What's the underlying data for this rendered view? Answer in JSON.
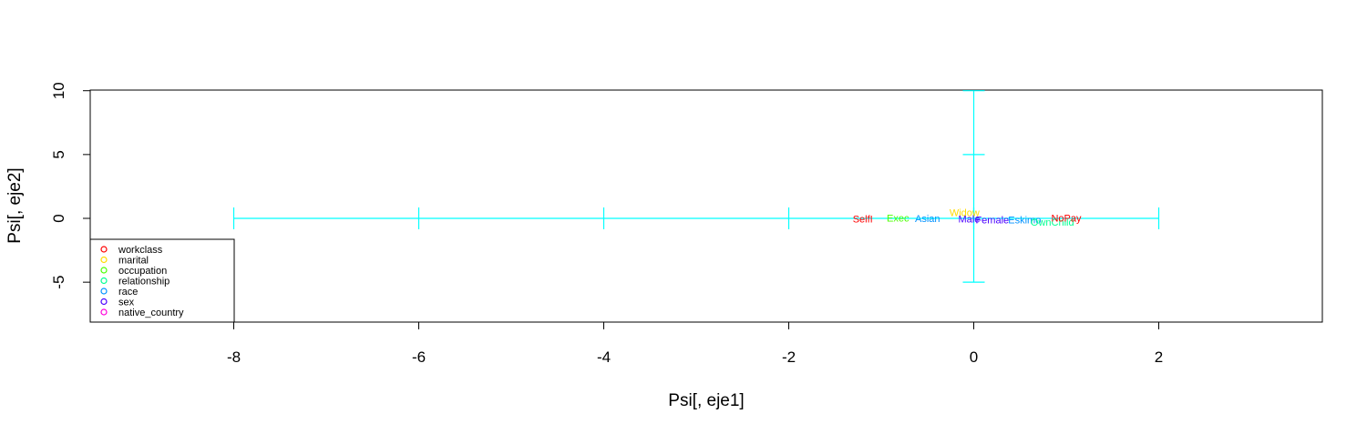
{
  "chart_data": {
    "type": "scatter",
    "xlabel": "Psi[, eje1]",
    "ylabel": "Psi[, eje2]",
    "xlim": [
      -9.5,
      3.7
    ],
    "ylim": [
      -8.2,
      10.3
    ],
    "x_ticks": [
      "-8",
      "-6",
      "-4",
      "-2",
      "0",
      "2"
    ],
    "y_ticks": [
      "-5",
      "0",
      "5",
      "10"
    ],
    "reference_lines": {
      "color": "#00FFFF",
      "horizontal": {
        "y": 0,
        "x_from": -8,
        "x_to": 2,
        "tick_marks_at": [
          -8,
          -6,
          -4,
          -2,
          0,
          2
        ]
      },
      "vertical": {
        "x": 0,
        "y_from": -5,
        "y_to": 10,
        "tick_marks_at": [
          -5,
          5,
          10
        ]
      }
    },
    "legend": {
      "position": "bottom-left",
      "entries": [
        {
          "name": "workclass",
          "color": "#FF0000"
        },
        {
          "name": "marital",
          "color": "#FFDB00"
        },
        {
          "name": "occupation",
          "color": "#49FF00"
        },
        {
          "name": "relationship",
          "color": "#00FF92"
        },
        {
          "name": "race",
          "color": "#0092FF"
        },
        {
          "name": "sex",
          "color": "#4900FF"
        },
        {
          "name": "native_country",
          "color": "#FF00DB"
        }
      ]
    },
    "points": [
      {
        "label": "SelfI",
        "x": -1.2,
        "y": -0.05,
        "color": "#FF0000"
      },
      {
        "label": "Exec",
        "x": -0.82,
        "y": 0.05,
        "color": "#49FF00"
      },
      {
        "label": "Asian",
        "x": -0.5,
        "y": 0.0,
        "color": "#0092FF"
      },
      {
        "label": "Widow",
        "x": -0.1,
        "y": 0.45,
        "color": "#FFDB00"
      },
      {
        "label": "Male",
        "x": -0.05,
        "y": -0.05,
        "color": "#4900FF"
      },
      {
        "label": "Female",
        "x": 0.2,
        "y": -0.1,
        "color": "#4900FF"
      },
      {
        "label": "Eskimo",
        "x": 0.55,
        "y": -0.1,
        "color": "#0092FF"
      },
      {
        "label": "OwnChild",
        "x": 0.85,
        "y": -0.3,
        "color": "#00FF92"
      },
      {
        "label": "NoPay",
        "x": 1.0,
        "y": 0.05,
        "color": "#FF0000"
      }
    ]
  }
}
